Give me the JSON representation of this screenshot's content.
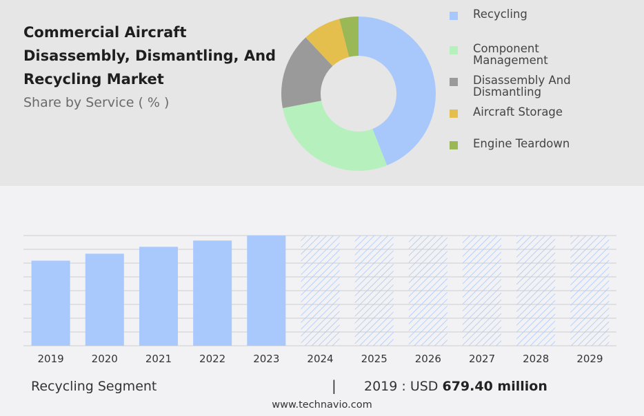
{
  "title": "Commercial Aircraft Disassembly, Dismantling, And Recycling Market",
  "subtitle": "Share by Service ( % )",
  "colors": {
    "top_panel_bg": "#e6e6e6",
    "actual_bar": "#a9c8fb",
    "forecast_hatch": "#a9c8fb",
    "grid": "#cfcfcf"
  },
  "chart_data": [
    {
      "type": "pie",
      "variant": "donut",
      "series": [
        {
          "name": "Recycling",
          "value": 44,
          "color": "#a8c8fb"
        },
        {
          "name": "Component Management",
          "value": 28,
          "color": "#b5f0bd"
        },
        {
          "name": "Disassembly And Dismantling",
          "value": 16,
          "color": "#9a9a9a"
        },
        {
          "name": "Aircraft Storage",
          "value": 8,
          "color": "#e5bf4e"
        },
        {
          "name": "Engine Teardown",
          "value": 4,
          "color": "#9ab856"
        }
      ],
      "legend_position": "right"
    },
    {
      "type": "bar",
      "categories": [
        "2019",
        "2020",
        "2021",
        "2022",
        "2023",
        "2024",
        "2025",
        "2026",
        "2027",
        "2028",
        "2029"
      ],
      "values": [
        679.4,
        735,
        790,
        840,
        880,
        880,
        880,
        880,
        880,
        880,
        880
      ],
      "forecast_from_index": 5,
      "ylim": [
        0,
        880
      ],
      "grid": true,
      "show_y_ticks": false
    }
  ],
  "footer": {
    "segment_label": "Recycling Segment",
    "divider": "|",
    "value_prefix": "2019 : USD",
    "value_strong": "679.40 million"
  },
  "source": "www.technavio.com"
}
